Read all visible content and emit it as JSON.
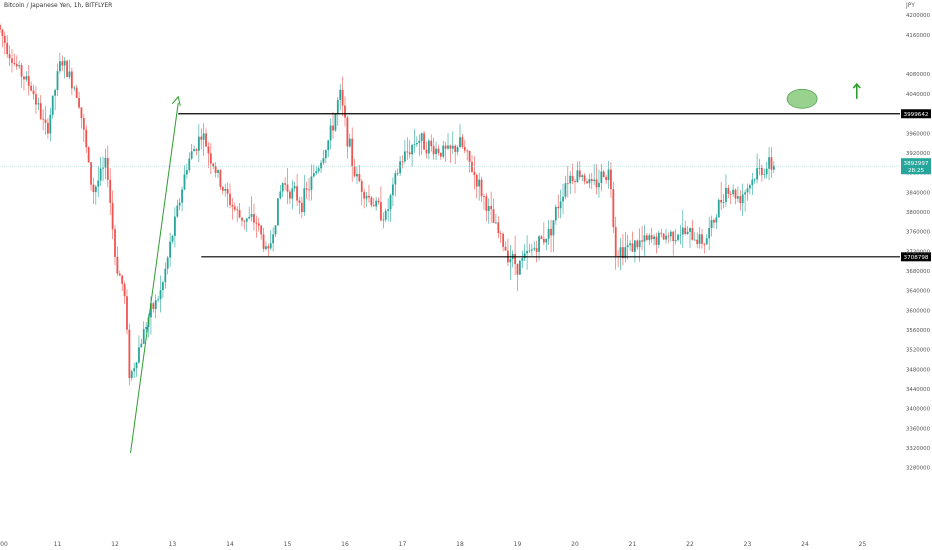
{
  "chart_title": "Bitcoin / Japanese Yen, 1h, BITFLYER",
  "currency": "JPY",
  "colors": {
    "up": "#26a69a",
    "down": "#ef5350",
    "trend": "#2e9d2e",
    "target": "#99d18f",
    "level": "#000000",
    "price_tag": "#26a69a"
  },
  "chart_data": {
    "type": "candlestick",
    "title": "Bitcoin / Japanese Yen, 1h, BITFLYER",
    "ylabel": "JPY",
    "ylim": [
      3280000,
      4210000
    ],
    "x_ticks": [
      {
        "label": "00",
        "day": 10
      },
      {
        "label": "11",
        "day": 11
      },
      {
        "label": "12",
        "day": 12
      },
      {
        "label": "13",
        "day": 13
      },
      {
        "label": "14",
        "day": 14
      },
      {
        "label": "15",
        "day": 15
      },
      {
        "label": "16",
        "day": 16
      },
      {
        "label": "17",
        "day": 17
      },
      {
        "label": "18",
        "day": 18
      },
      {
        "label": "19",
        "day": 19
      },
      {
        "label": "20",
        "day": 20
      },
      {
        "label": "21",
        "day": 21
      },
      {
        "label": "22",
        "day": 22
      },
      {
        "label": "23",
        "day": 23
      },
      {
        "label": "24",
        "day": 24
      },
      {
        "label": "25",
        "day": 25
      }
    ],
    "y_ticks": [
      4200000,
      4160000,
      4080000,
      4040000,
      3960000,
      3920000,
      3880000,
      3840000,
      3800000,
      3760000,
      3720000,
      3680000,
      3640000,
      3600000,
      3560000,
      3520000,
      3480000,
      3440000,
      3400000,
      3360000,
      3320000,
      3280000
    ],
    "levels": [
      {
        "name": "resistance",
        "value": 3999642,
        "label": "3999642",
        "day_start": 13.1,
        "day_end": 25.9
      },
      {
        "name": "support",
        "value": 3708798,
        "label": "3708798",
        "day_start": 13.5,
        "day_end": 25.9
      }
    ],
    "last_price": {
      "value": 3892997,
      "label": "3892997",
      "countdown": "28:25"
    },
    "trendline": [
      {
        "day": 12.27,
        "value": 3310000
      },
      {
        "day": 13.1,
        "value": 4022000
      }
    ],
    "target_ellipse": {
      "day": 23.95,
      "value": 4030000
    },
    "up_arrow": {
      "day": 24.9,
      "value_low": 4030000,
      "value_high": 4060000
    },
    "path_days": [
      10.0,
      10.3,
      10.6,
      10.85,
      11.1,
      11.4,
      11.65,
      11.9,
      12.05,
      12.2,
      12.3,
      12.6,
      12.85,
      13.05,
      13.3,
      13.55,
      13.9,
      14.2,
      14.5,
      14.7,
      14.95,
      15.3,
      15.6,
      15.8,
      15.95,
      16.2,
      16.45,
      16.75,
      17.0,
      17.3,
      17.55,
      17.85,
      18.05,
      18.35,
      18.65,
      18.85,
      19.05,
      19.35,
      19.6,
      19.9,
      20.15,
      20.35,
      20.55,
      20.65,
      20.75,
      21.0,
      21.3,
      21.6,
      21.85,
      22.1,
      22.3,
      22.45,
      22.65,
      22.9,
      23.1,
      23.2,
      23.35,
      23.5
    ],
    "path_values": [
      4180000,
      4100000,
      4050000,
      3960000,
      4110000,
      4040000,
      3840000,
      3900000,
      3700000,
      3640000,
      3460000,
      3580000,
      3640000,
      3760000,
      3900000,
      3960000,
      3850000,
      3790000,
      3780000,
      3710000,
      3860000,
      3820000,
      3900000,
      3960000,
      4040000,
      3880000,
      3830000,
      3790000,
      3900000,
      3950000,
      3930000,
      3920000,
      3940000,
      3860000,
      3770000,
      3720000,
      3690000,
      3730000,
      3760000,
      3870000,
      3880000,
      3850000,
      3880000,
      3880000,
      3720000,
      3730000,
      3740000,
      3750000,
      3760000,
      3750000,
      3740000,
      3780000,
      3850000,
      3830000,
      3860000,
      3880000,
      3890000,
      3895000
    ]
  }
}
